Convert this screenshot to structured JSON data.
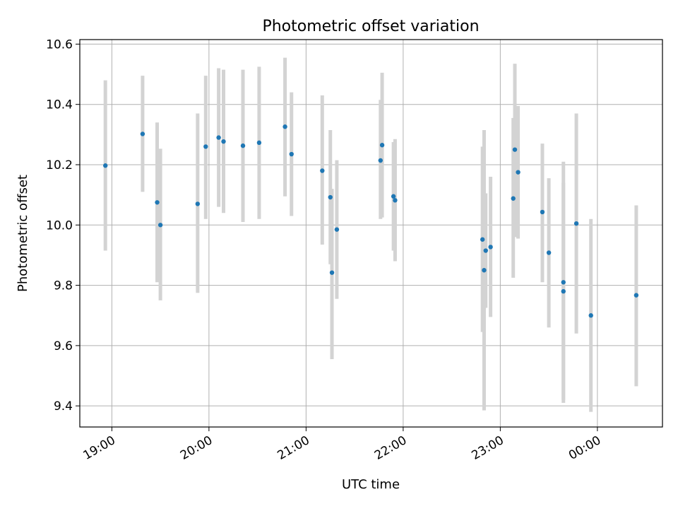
{
  "chart_data": {
    "type": "scatter",
    "title": "Photometric offset variation",
    "xlabel": "UTC time",
    "ylabel": "Photometric offset",
    "x_ticks": [
      "19:00",
      "20:00",
      "21:00",
      "22:00",
      "23:00",
      "00:00"
    ],
    "x_tick_hours": [
      19,
      20,
      21,
      22,
      23,
      24
    ],
    "xlim_hours": [
      18.67,
      24.67
    ],
    "y_ticks": [
      "9.4",
      "9.6",
      "9.8",
      "10.0",
      "10.2",
      "10.4",
      "10.6"
    ],
    "ylim": [
      9.33,
      10.615
    ],
    "grid": true,
    "marker_color": "#1f77b4",
    "errorbar_color": "#d3d3d3",
    "points": [
      {
        "t": "18:56",
        "y": 10.197,
        "lo": 9.915,
        "hi": 10.48
      },
      {
        "t": "19:19",
        "y": 10.302,
        "lo": 10.11,
        "hi": 10.495
      },
      {
        "t": "19:28",
        "y": 10.075,
        "lo": 9.81,
        "hi": 10.34
      },
      {
        "t": "19:30",
        "y": 10.0,
        "lo": 9.75,
        "hi": 10.253
      },
      {
        "t": "19:53",
        "y": 10.07,
        "lo": 9.775,
        "hi": 10.37
      },
      {
        "t": "19:58",
        "y": 10.26,
        "lo": 10.02,
        "hi": 10.495
      },
      {
        "t": "20:06",
        "y": 10.29,
        "lo": 10.06,
        "hi": 10.52
      },
      {
        "t": "20:09",
        "y": 10.277,
        "lo": 10.04,
        "hi": 10.515
      },
      {
        "t": "20:21",
        "y": 10.263,
        "lo": 10.01,
        "hi": 10.515
      },
      {
        "t": "20:31",
        "y": 10.273,
        "lo": 10.02,
        "hi": 10.525
      },
      {
        "t": "20:47",
        "y": 10.326,
        "lo": 10.095,
        "hi": 10.555
      },
      {
        "t": "20:51",
        "y": 10.235,
        "lo": 10.03,
        "hi": 10.44
      },
      {
        "t": "21:10",
        "y": 10.18,
        "lo": 9.935,
        "hi": 10.43
      },
      {
        "t": "21:15",
        "y": 10.092,
        "lo": 9.87,
        "hi": 10.315
      },
      {
        "t": "21:16",
        "y": 9.842,
        "lo": 9.555,
        "hi": 10.12
      },
      {
        "t": "21:19",
        "y": 9.985,
        "lo": 9.755,
        "hi": 10.215
      },
      {
        "t": "21:46",
        "y": 10.214,
        "lo": 10.02,
        "hi": 10.415
      },
      {
        "t": "21:47",
        "y": 10.265,
        "lo": 10.025,
        "hi": 10.505
      },
      {
        "t": "21:54",
        "y": 10.095,
        "lo": 9.915,
        "hi": 10.275
      },
      {
        "t": "21:55",
        "y": 10.082,
        "lo": 9.88,
        "hi": 10.285
      },
      {
        "t": "22:49",
        "y": 9.952,
        "lo": 9.645,
        "hi": 10.26
      },
      {
        "t": "22:50",
        "y": 9.85,
        "lo": 9.385,
        "hi": 10.315
      },
      {
        "t": "22:51",
        "y": 9.915,
        "lo": 9.725,
        "hi": 10.105
      },
      {
        "t": "22:54",
        "y": 9.927,
        "lo": 9.695,
        "hi": 10.16
      },
      {
        "t": "23:08",
        "y": 10.088,
        "lo": 9.825,
        "hi": 10.355
      },
      {
        "t": "23:09",
        "y": 10.25,
        "lo": 9.96,
        "hi": 10.535
      },
      {
        "t": "23:11",
        "y": 10.175,
        "lo": 9.955,
        "hi": 10.395
      },
      {
        "t": "23:26",
        "y": 10.043,
        "lo": 9.81,
        "hi": 10.27
      },
      {
        "t": "23:30",
        "y": 9.908,
        "lo": 9.66,
        "hi": 10.155
      },
      {
        "t": "23:39",
        "y": 9.81,
        "lo": 9.41,
        "hi": 10.21
      },
      {
        "t": "23:39",
        "y": 9.78,
        "lo": 9.42,
        "hi": 10.14
      },
      {
        "t": "23:47",
        "y": 10.005,
        "lo": 9.64,
        "hi": 10.37
      },
      {
        "t": "23:56",
        "y": 9.7,
        "lo": 9.38,
        "hi": 10.02
      },
      {
        "t": "00:24",
        "y": 9.767,
        "lo": 9.465,
        "hi": 10.065
      }
    ]
  }
}
